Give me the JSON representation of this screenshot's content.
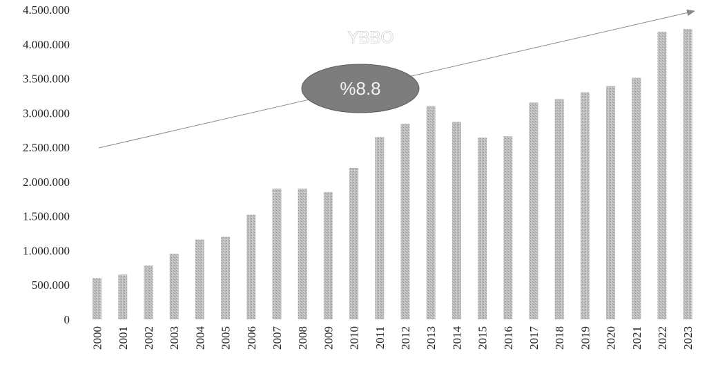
{
  "chart_data": {
    "type": "bar",
    "categories": [
      "2000",
      "2001",
      "2002",
      "2003",
      "2004",
      "2005",
      "2006",
      "2007",
      "2008",
      "2009",
      "2010",
      "2011",
      "2012",
      "2013",
      "2014",
      "2015",
      "2016",
      "2017",
      "2018",
      "2019",
      "2020",
      "2021",
      "2022",
      "2023"
    ],
    "values": [
      600000,
      650000,
      780000,
      950000,
      1160000,
      1200000,
      1520000,
      1900000,
      1900000,
      1850000,
      2200000,
      2650000,
      2840000,
      3100000,
      2870000,
      2640000,
      2660000,
      3150000,
      3200000,
      3300000,
      3390000,
      3510000,
      4180000,
      4220000
    ],
    "ylim": [
      0,
      4500000
    ],
    "yticks": [
      0,
      500000,
      1000000,
      1500000,
      2000000,
      2500000,
      3000000,
      3500000,
      4000000,
      4500000
    ],
    "ytick_labels": [
      "0",
      "500.000",
      "1.000.000",
      "1.500.000",
      "2.000.000",
      "2.500.000",
      "3.000.000",
      "3.500.000",
      "4.000.000",
      "4.500.000"
    ],
    "grid": false,
    "bar_color": "#b5b5b5",
    "trend_line": {
      "label": "YBBO",
      "badge_text": "%8.8",
      "badge_color": "#7d7d7d",
      "line_color": "#8a8a8a"
    }
  }
}
